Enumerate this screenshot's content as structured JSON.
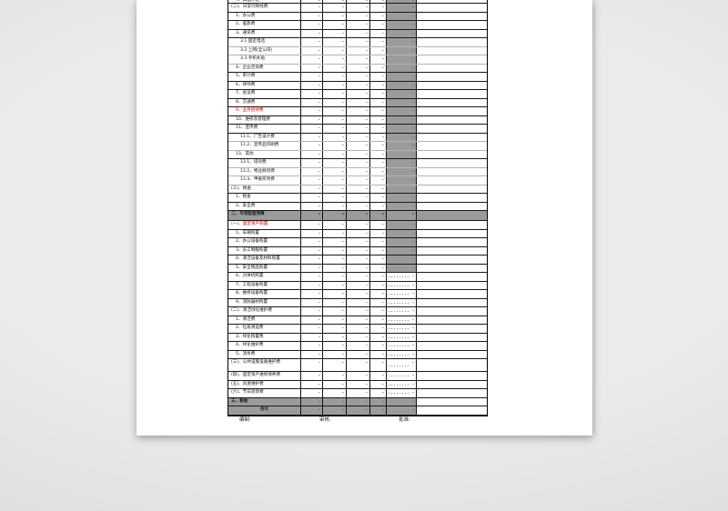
{
  "footer": {
    "prepared_label": "编制:",
    "reviewed_label": "审核:",
    "approved_label": "批准:"
  },
  "colors": {
    "accent_red": "#c00000",
    "gray_fill": "#9b9b9b",
    "grid_border": "#1a1a1a",
    "page_bg": "#ffffff",
    "canvas_bg": "#e5e3e4"
  },
  "table": {
    "placeholder_dash": "-",
    "rows": [
      {
        "label": "7、高温补贴",
        "indent": 1,
        "type": "partial",
        "gray": "red",
        "cells": [
          "-",
          "-",
          "-",
          "-",
          "-"
        ]
      },
      {
        "label": "(二)、日常行政经费",
        "indent": 0,
        "type": "normal",
        "gray": "red",
        "cells": [
          "-",
          "-",
          "-",
          "-",
          "-"
        ]
      },
      {
        "label": "1、办公费",
        "indent": 1,
        "type": "normal",
        "gray": "red",
        "cells": [
          "-",
          "-",
          "-",
          "-",
          "-"
        ]
      },
      {
        "label": "2、差旅费",
        "indent": 1,
        "type": "normal",
        "gray": "red",
        "cells": [
          "-",
          "-",
          "-",
          "-",
          "-"
        ]
      },
      {
        "label": "3、通讯费",
        "indent": 1,
        "type": "normal",
        "gray": "red",
        "cells": [
          "-",
          "-",
          "-",
          "-",
          "-"
        ]
      },
      {
        "label": "3.1 固定电话",
        "indent": 2,
        "type": "normal",
        "gray": "red",
        "cells": [
          "-",
          "-",
          "-",
          "-",
          "-"
        ]
      },
      {
        "label": "3.2 上网(全公司)",
        "indent": 2,
        "type": "normal",
        "gray": "red",
        "cells": [
          "-",
          "-",
          "-",
          "-",
          "-"
        ]
      },
      {
        "label": "3.3 手机补贴",
        "indent": 2,
        "type": "normal",
        "gray": "red",
        "cells": [
          "-",
          "-",
          "-",
          "-",
          "-"
        ]
      },
      {
        "label": "4、企业咨询费",
        "indent": 1,
        "type": "normal",
        "gray": "red",
        "cells": [
          "-",
          "-",
          "-",
          "-",
          "-"
        ]
      },
      {
        "label": "5、审计费",
        "indent": 1,
        "type": "normal",
        "gray": "red",
        "cells": [
          "-",
          "-",
          "-",
          "-",
          "-"
        ]
      },
      {
        "label": "6、律师费",
        "indent": 1,
        "type": "normal",
        "gray": "red",
        "cells": [
          "-",
          "-",
          "-",
          "-",
          "-"
        ]
      },
      {
        "label": "7、会议费",
        "indent": 1,
        "type": "normal",
        "gray": "red",
        "cells": [
          "-",
          "-",
          "-",
          "-",
          "-"
        ]
      },
      {
        "label": "8、交通费",
        "indent": 1,
        "type": "normal",
        "gray": "red",
        "cells": [
          "-",
          "-",
          "-",
          "-",
          "-"
        ]
      },
      {
        "label": "9、业务招待费",
        "indent": 1,
        "type": "red",
        "gray": "red",
        "cells": [
          "-",
          "-",
          "-",
          "-",
          "-"
        ]
      },
      {
        "label": "10、维修及管理费",
        "indent": 1,
        "type": "normal",
        "gray": "red",
        "cells": [
          "-",
          "-",
          "-",
          "-",
          "-"
        ]
      },
      {
        "label": "11、宣传费",
        "indent": 1,
        "type": "normal",
        "gray": "red",
        "cells": [
          "-",
          "-",
          "-",
          "-",
          "-"
        ]
      },
      {
        "label": "11.1、广告设计费",
        "indent": 2,
        "type": "normal",
        "gray": "red",
        "cells": [
          "-",
          "-",
          "-",
          "-",
          "-"
        ]
      },
      {
        "label": "11.2、宣传品印刷费",
        "indent": 2,
        "type": "normal",
        "gray": "red",
        "cells": [
          "-",
          "-",
          "-",
          "-",
          "-"
        ]
      },
      {
        "label": "13、其他",
        "indent": 1,
        "type": "normal",
        "gray": "red",
        "cells": [
          "-",
          "-",
          "-",
          "-",
          "-"
        ]
      },
      {
        "label": "13.1、培训费",
        "indent": 2,
        "type": "normal",
        "gray": "red",
        "cells": [
          "-",
          "-",
          "-",
          "-",
          "-"
        ]
      },
      {
        "label": "13.2、物业顾问费",
        "indent": 2,
        "type": "normal",
        "gray": "red",
        "cells": [
          "-",
          "-",
          "-",
          "-",
          "-"
        ]
      },
      {
        "label": "13.3、申报奖项费",
        "indent": 2,
        "type": "normal",
        "gray": "red",
        "cells": [
          "-",
          "-",
          "-",
          "-",
          "-"
        ]
      },
      {
        "label": "(三)、税金",
        "indent": 0,
        "type": "normal",
        "gray": "red",
        "cells": [
          "-",
          "-",
          "-",
          "-",
          "-"
        ]
      },
      {
        "label": "1、税金",
        "indent": 1,
        "type": "normal",
        "gray": "red",
        "cells": [
          "-",
          "-",
          "-",
          "-",
          "-"
        ]
      },
      {
        "label": "2、安全费",
        "indent": 1,
        "type": "normal",
        "gray": "red",
        "cells": [
          "-",
          "-",
          "-",
          "-",
          "-"
        ]
      },
      {
        "label": "二、专项配套预算",
        "indent": 0,
        "type": "section",
        "gray": "red",
        "cells": [
          "-",
          "-",
          "-",
          "-",
          "-"
        ]
      },
      {
        "label": "(一)、固定资产购置",
        "indent": 0,
        "type": "red",
        "gray": "red",
        "cells": [
          "-",
          "-",
          "-",
          "-",
          "-"
        ]
      },
      {
        "label": "1、车辆购置",
        "indent": 1,
        "type": "normal",
        "gray": "red",
        "cells": [
          "-",
          "-",
          "-",
          "-",
          "-"
        ]
      },
      {
        "label": "2、办公设备购置",
        "indent": 1,
        "type": "normal",
        "gray": "red",
        "cells": [
          "-",
          "-",
          "-",
          "-",
          "-"
        ]
      },
      {
        "label": "3、员工制服购置",
        "indent": 1,
        "type": "normal",
        "gray": "red",
        "cells": [
          "-",
          "-",
          "-",
          "-",
          "-"
        ]
      },
      {
        "label": "4、清洁设备及材料购置",
        "indent": 1,
        "type": "normal",
        "gray": "red",
        "cells": [
          "-",
          "-",
          "-",
          "-",
          "-"
        ]
      },
      {
        "label": "5、安全物品购置",
        "indent": 1,
        "type": "normal",
        "gray": "red",
        "cells": [
          "-",
          "-",
          "-",
          "-",
          "-"
        ]
      },
      {
        "label": "6、对讲机购置",
        "indent": 1,
        "type": "normal",
        "gray": "dot",
        "cells": [
          "-",
          "-",
          "-",
          "-",
          "-"
        ]
      },
      {
        "label": "7、工程设备购置",
        "indent": 1,
        "type": "normal",
        "gray": "dot",
        "cells": [
          "-",
          "-",
          "-",
          "-",
          "-"
        ]
      },
      {
        "label": "8、维修设备购置",
        "indent": 1,
        "type": "normal",
        "gray": "dot",
        "cells": [
          "-",
          "-",
          "-",
          "-",
          "-"
        ]
      },
      {
        "label": "9、消防器材购置",
        "indent": 1,
        "type": "normal",
        "gray": "dot",
        "cells": [
          "-",
          "-",
          "-",
          "-",
          "-"
        ]
      },
      {
        "label": "(二)、清洁绿化维护费",
        "indent": 0,
        "type": "normal",
        "gray": "dot",
        "cells": [
          "-",
          "-",
          "-",
          "-",
          "-"
        ]
      },
      {
        "label": "1、清洁费",
        "indent": 1,
        "type": "normal",
        "gray": "dot",
        "cells": [
          "-",
          "-",
          "-",
          "-",
          "-"
        ]
      },
      {
        "label": "2、垃圾清运费",
        "indent": 1,
        "type": "normal",
        "gray": "dot",
        "cells": [
          "-",
          "-",
          "-",
          "-",
          "-"
        ]
      },
      {
        "label": "3、绿化购置费",
        "indent": 1,
        "type": "normal",
        "gray": "dot",
        "cells": [
          "-",
          "-",
          "-",
          "-",
          "-"
        ]
      },
      {
        "label": "4、绿化维护费",
        "indent": 1,
        "type": "normal",
        "gray": "dot",
        "cells": [
          "-",
          "-",
          "-",
          "-",
          "-"
        ]
      },
      {
        "label": "5、消杀费",
        "indent": 1,
        "type": "normal",
        "gray": "dot",
        "cells": [
          "-",
          "-",
          "-",
          "-",
          "-"
        ]
      },
      {
        "label": "(三)、公共设施设备维护费",
        "indent": 0,
        "type": "tall",
        "gray": "dot",
        "cells": [
          "-",
          "-",
          "-",
          "-",
          "-"
        ]
      },
      {
        "label": "(四)、固定资产维修保养费",
        "indent": 0,
        "type": "normal",
        "gray": "dot",
        "cells": [
          "-",
          "-",
          "-",
          "-",
          "-"
        ]
      },
      {
        "label": "(五)、房屋维护费",
        "indent": 0,
        "type": "normal",
        "gray": "dot",
        "cells": [
          "-",
          "-",
          "-",
          "-",
          "-"
        ]
      },
      {
        "label": "(六)、节日装饰费",
        "indent": 0,
        "type": "normal",
        "gray": "dot",
        "cells": [
          "-",
          "-",
          "-",
          "-",
          "-"
        ]
      },
      {
        "label": "三、税金",
        "indent": 0,
        "type": "graytotal",
        "gray": "dot",
        "dotted": true,
        "cells": [
          "-",
          "-",
          "-",
          "-",
          "-"
        ]
      },
      {
        "label": "合计",
        "indent": 0,
        "type": "graytotal total",
        "gray": "dot",
        "dotted": true,
        "cells": [
          "-",
          "-",
          "-",
          "-",
          "-"
        ]
      }
    ]
  }
}
